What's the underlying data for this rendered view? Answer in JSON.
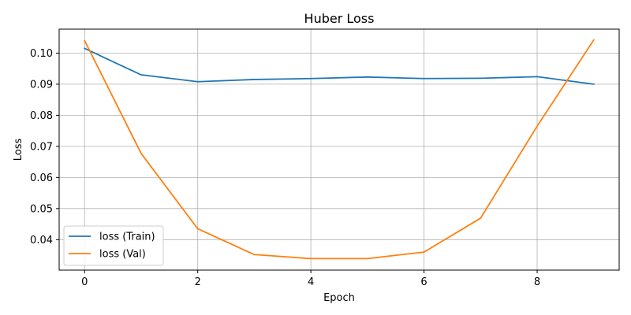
{
  "chart_data": {
    "type": "line",
    "title": "Huber Loss",
    "xlabel": "Epoch",
    "ylabel": "Loss",
    "x": [
      0,
      1,
      2,
      3,
      4,
      5,
      6,
      7,
      8,
      9
    ],
    "xlim": [
      -0.45,
      9.45
    ],
    "ylim": [
      0.0302,
      0.1077
    ],
    "xticks": [
      0,
      2,
      4,
      6,
      8
    ],
    "xtick_labels": [
      "0",
      "2",
      "4",
      "6",
      "8"
    ],
    "yticks": [
      0.04,
      0.05,
      0.06,
      0.07,
      0.08,
      0.09,
      0.1
    ],
    "ytick_labels": [
      "0.04",
      "0.05",
      "0.06",
      "0.07",
      "0.08",
      "0.09",
      "0.10"
    ],
    "grid": true,
    "legend_position": "lower-left",
    "series": [
      {
        "name": "loss (Train)",
        "color": "#1f77b4",
        "values": [
          0.1015,
          0.093,
          0.0908,
          0.0915,
          0.0918,
          0.0923,
          0.0918,
          0.0919,
          0.0924,
          0.09
        ]
      },
      {
        "name": "loss (Val)",
        "color": "#ff7f0e",
        "values": [
          0.104,
          0.0677,
          0.0435,
          0.0352,
          0.0339,
          0.0339,
          0.036,
          0.0469,
          0.0765,
          0.1042
        ]
      }
    ]
  }
}
